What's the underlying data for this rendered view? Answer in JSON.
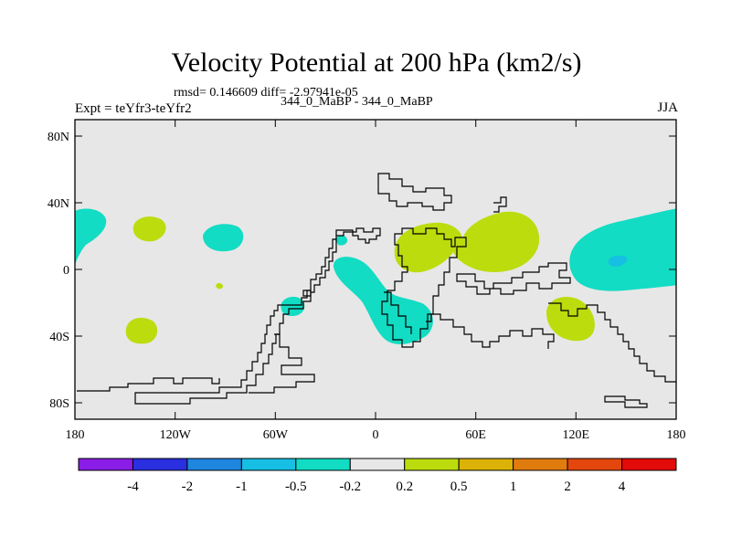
{
  "map": {
    "title": "Velocity Potential at 200 hPa (km2/s)",
    "stats": "rmsd= 0.146609 diff= -2.97941e-05",
    "expt_label": "Expt = teYfr3-teYfr2",
    "runs_label": "344_0_MaBP - 344_0_MaBP",
    "season": "JJA",
    "lat_labels": [
      "80N",
      "40N",
      "0",
      "40S",
      "80S"
    ],
    "lon_labels": [
      "180",
      "120W",
      "60W",
      "0",
      "60E",
      "120E",
      "180"
    ]
  },
  "colorbar": {
    "labels": [
      "-4",
      "-2",
      "-1",
      "-0.5",
      "-0.2",
      "0.2",
      "0.5",
      "1",
      "2",
      "4"
    ],
    "colors": [
      "#8a1de6",
      "#2a2fe0",
      "#1f86e0",
      "#16bfe3",
      "#12dcc3",
      "#e7e7e7",
      "#bcdc0e",
      "#dcb208",
      "#e07c0e",
      "#e4470d",
      "#e30a0a"
    ]
  },
  "colors": {
    "background": "#e7e7e7",
    "negative_light": "#12dcc3",
    "negative_mid": "#16bfe3",
    "positive_light": "#bcdc0e",
    "coastline": "#000000"
  }
}
